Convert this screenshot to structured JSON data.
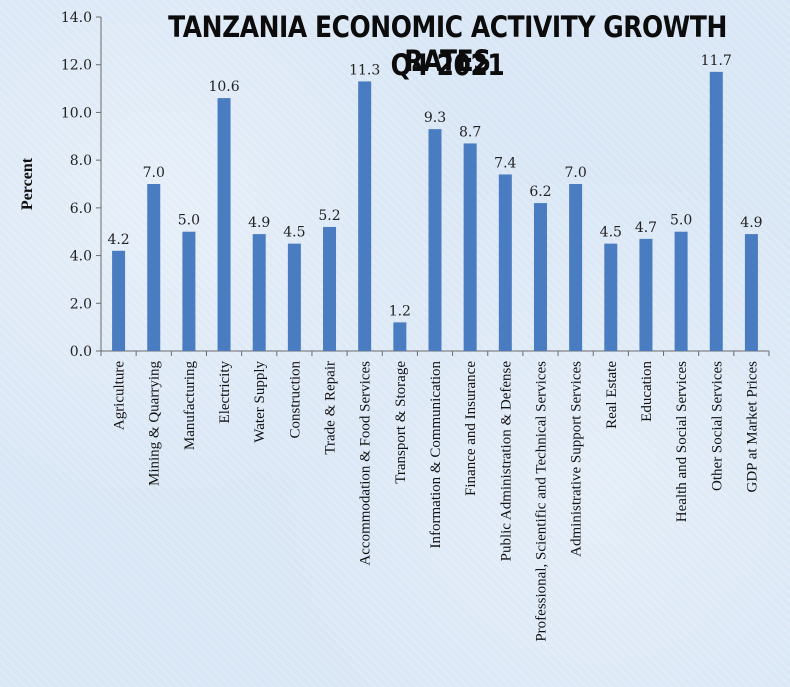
{
  "chart_data": {
    "type": "bar",
    "title_lines": [
      "TANZANIA ECONOMIC ACTIVITY GROWTH RATES",
      "Q4 2021"
    ],
    "ylabel": "Percent",
    "xlabel": "",
    "ylim": [
      0,
      14
    ],
    "yticks": [
      "0.0",
      "2.0",
      "4.0",
      "6.0",
      "8.0",
      "10.0",
      "12.0",
      "14.0"
    ],
    "grid": false,
    "bar_color": "#4a7cc1",
    "categories": [
      "Agriculture",
      "Mining & Quarrying",
      "Manufacturing",
      "Electricity",
      "Water Supply",
      "Construction",
      "Trade & Repair",
      "Accommodation & Food Services",
      "Transport & Storage",
      "Information & Communication",
      "Finance and Insurance",
      "Public Administration & Defense",
      "Professional, Scientific and Technical Services",
      "Administrative Support Services",
      "Real Estate",
      "Education",
      "Health and Social Services",
      "Other Social Services",
      "GDP at Market Prices"
    ],
    "values": [
      4.2,
      7.0,
      5.0,
      10.6,
      4.9,
      4.5,
      5.2,
      11.3,
      1.2,
      9.3,
      8.7,
      7.4,
      6.2,
      7.0,
      4.5,
      4.7,
      5.0,
      11.7,
      4.9
    ],
    "value_labels": [
      "4.2",
      "7.0",
      "5.0",
      "10.6",
      "4.9",
      "4.5",
      "5.2",
      "11.3",
      "1.2",
      "9.3",
      "8.7",
      "7.4",
      "6.2",
      "7.0",
      "4.5",
      "4.7",
      "5.0",
      "11.7",
      "4.9"
    ]
  }
}
